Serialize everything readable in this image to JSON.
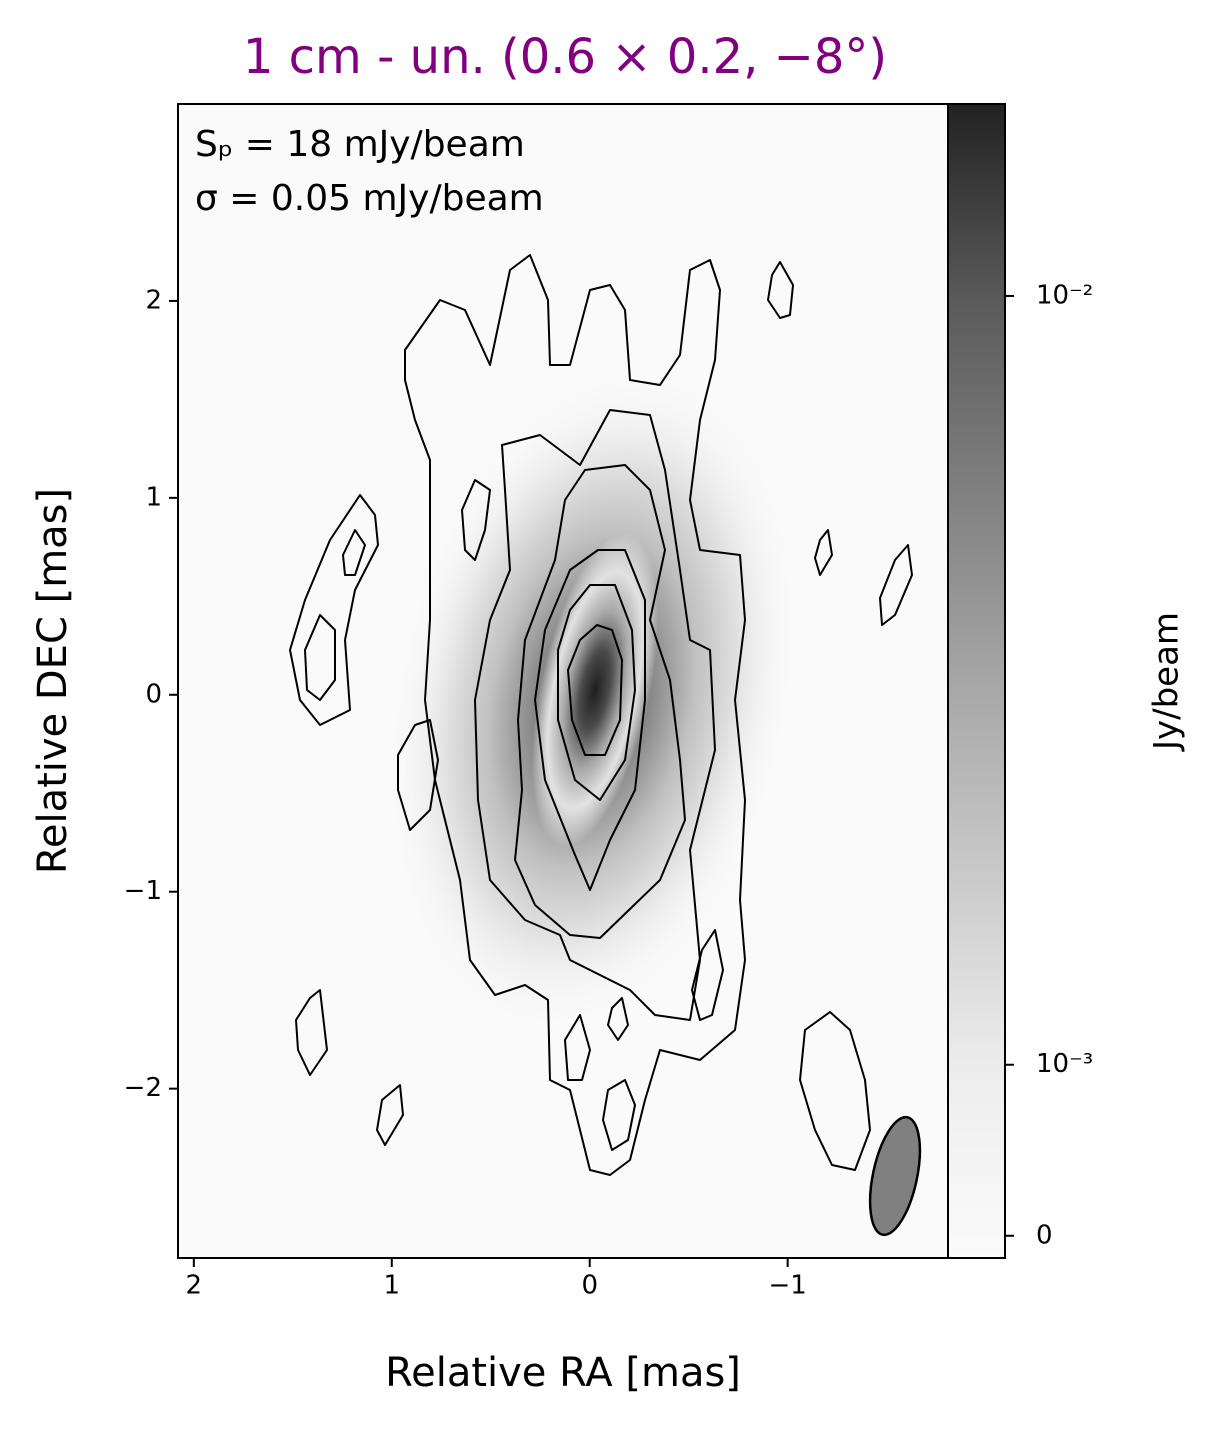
{
  "chart_data": {
    "type": "image",
    "title": "1 cm - un. (0.6 × 0.2, −8°)",
    "title_color": "#800080",
    "annotations": [
      "Sₚ = 18 mJy/beam",
      "σ = 0.05 mJy/beam"
    ],
    "xlabel": "Relative RA [mas]",
    "ylabel": "Relative DEC [mas]",
    "xlim": [
      2.08,
      -1.81
    ],
    "ylim": [
      -2.86,
      3.0
    ],
    "xticks": [
      2,
      1,
      0,
      {
        "value": -1,
        "label": "−1"
      }
    ],
    "yticks": [
      {
        "value": -2,
        "label": "−2"
      },
      {
        "value": -1,
        "label": "−1"
      },
      0,
      1,
      2
    ],
    "colorbar": {
      "label": "Jy/beam",
      "scale": "symlog",
      "linthresh": 0.0039,
      "clim": [
        -0.00013,
        0.0194
      ],
      "ticks": [
        0,
        {
          "value": 0.001,
          "label": "10⁻³"
        },
        {
          "value": 0.01,
          "label": "10⁻²"
        }
      ]
    }
  }
}
